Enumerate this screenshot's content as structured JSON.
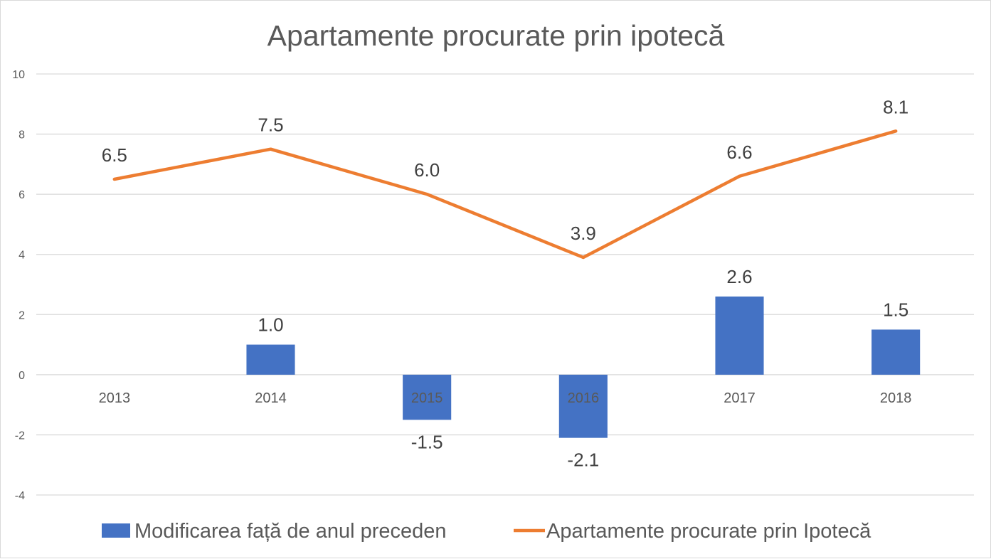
{
  "chart_data": {
    "type": "bar",
    "title": "Apartamente procurate prin ipotecă",
    "categories": [
      "2013",
      "2014",
      "2015",
      "2016",
      "2017",
      "2018"
    ],
    "ylim": [
      -4,
      10
    ],
    "yticks": [
      "-4",
      "-2",
      "0",
      "2",
      "4",
      "6",
      "8",
      "10"
    ],
    "grid": true,
    "legend_position": "bottom",
    "series": [
      {
        "name": "Modificarea față de anul preceden",
        "type": "bar",
        "color": "#4472c4",
        "values": [
          null,
          1.0,
          -1.5,
          -2.1,
          2.6,
          1.5
        ],
        "labels": [
          "",
          "1.0",
          "-1.5",
          "-2.1",
          "2.6",
          "1.5"
        ]
      },
      {
        "name": "Apartamente procurate prin Ipotecă",
        "type": "line",
        "color": "#ed7d31",
        "values": [
          6.5,
          7.5,
          6.0,
          3.9,
          6.6,
          8.1
        ],
        "labels": [
          "6.5",
          "7.5",
          "6.0",
          "3.9",
          "6.6",
          "8.1"
        ]
      }
    ]
  }
}
